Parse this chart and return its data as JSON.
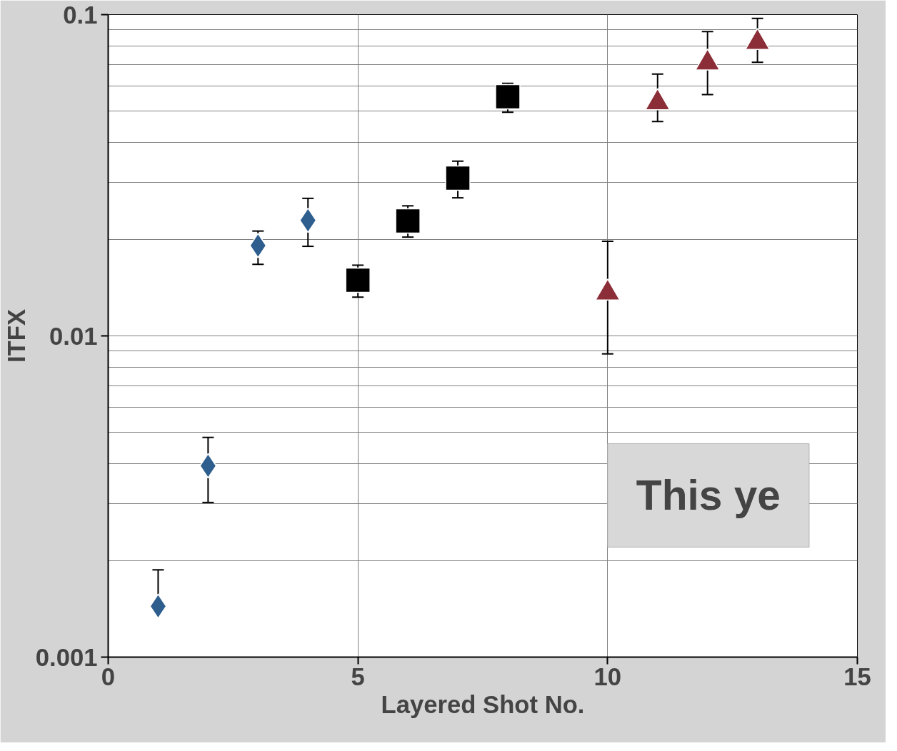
{
  "chart_data": {
    "type": "scatter",
    "xlabel": "Layered Shot No.",
    "ylabel": "ITFX",
    "xlim": [
      0,
      15
    ],
    "xticks": [
      0,
      5,
      10,
      15
    ],
    "ylim": [
      0.001,
      0.1
    ],
    "yticks": [
      0.001,
      0.01,
      0.1
    ],
    "log": "y",
    "grid": true,
    "series": [
      {
        "color": "#2e5e8e",
        "marker": "diamond",
        "x": [
          1,
          2,
          3,
          4
        ],
        "values": [
          0.00144,
          0.00394,
          0.0191,
          0.0229
        ],
        "errors": [
          [
            0.00144,
            0.00187
          ],
          [
            0.00303,
            0.00483
          ],
          [
            0.0167,
            0.0212
          ],
          [
            0.019,
            0.0268
          ]
        ]
      },
      {
        "color": "#000000",
        "marker": "square",
        "x": [
          5,
          6,
          7,
          8
        ],
        "values": [
          0.0149,
          0.0228,
          0.031,
          0.0555
        ],
        "errors": [
          [
            0.0132,
            0.0166
          ],
          [
            0.0203,
            0.0254
          ],
          [
            0.0269,
            0.035
          ],
          [
            0.0497,
            0.0611
          ]
        ]
      },
      {
        "color": "#8b2e38",
        "marker": "triangle",
        "x": [
          10,
          11,
          12,
          13
        ],
        "values": [
          0.0136,
          0.0532,
          0.0707,
          0.0819
        ],
        "errors": [
          [
            0.00879,
            0.0197
          ],
          [
            0.0465,
            0.0653
          ],
          [
            0.0564,
            0.0886
          ],
          [
            0.0711,
            0.0974
          ]
        ]
      }
    ],
    "annotations": [
      "This ye"
    ]
  }
}
